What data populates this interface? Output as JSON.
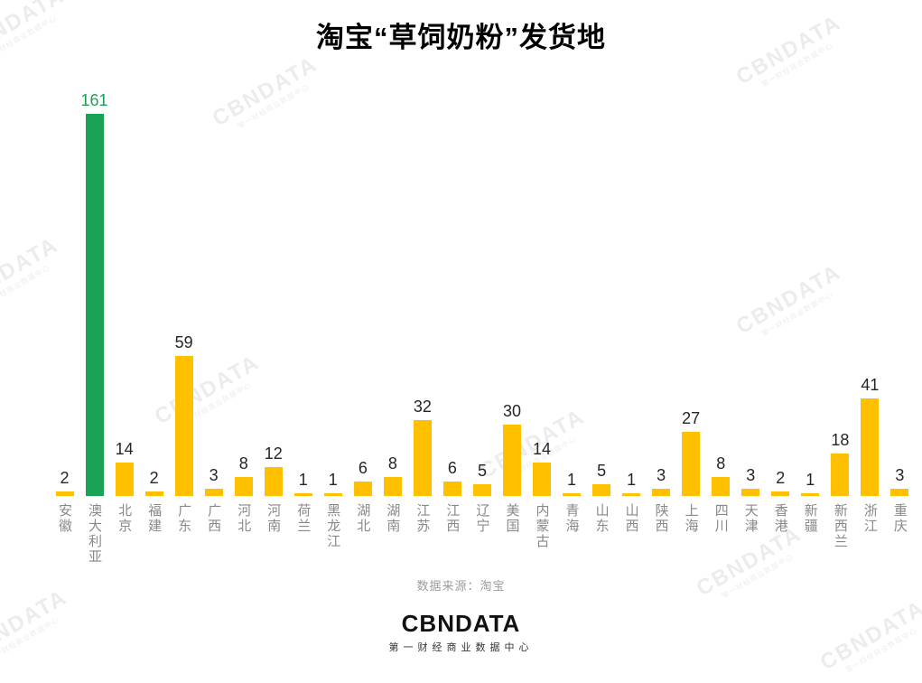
{
  "title": "淘宝“草饲奶粉”发货地",
  "chart_data": {
    "type": "bar",
    "title": "淘宝“草饲奶粉”发货地",
    "categories": [
      "安徽",
      "澳大利亚",
      "北京",
      "福建",
      "广东",
      "广西",
      "河北",
      "河南",
      "荷兰",
      "黑龙江",
      "湖北",
      "湖南",
      "江苏",
      "江西",
      "辽宁",
      "美国",
      "内蒙古",
      "青海",
      "山东",
      "山西",
      "陕西",
      "上海",
      "四川",
      "天津",
      "香港",
      "新疆",
      "新西兰",
      "浙江",
      "重庆"
    ],
    "values": [
      2,
      161,
      14,
      2,
      59,
      3,
      8,
      12,
      1,
      1,
      6,
      8,
      32,
      6,
      5,
      30,
      14,
      1,
      5,
      1,
      3,
      27,
      8,
      3,
      2,
      1,
      18,
      41,
      3
    ],
    "xlabel": "",
    "ylabel": "",
    "ylim": [
      0,
      170
    ],
    "grid": false,
    "legend": false,
    "bar_color": "#FFC000",
    "highlight_color": "#1AA356",
    "highlight_index": 1,
    "value_label_color": "#262626",
    "highlight_value_label_color": "#1AA356"
  },
  "source": "数据来源：淘宝",
  "logo": {
    "name": "CBNDATA",
    "subtitle": "第一财经商业数据中心"
  },
  "watermark": {
    "line1": "CBNDATA",
    "line2": "第一财经商业数据中心"
  }
}
